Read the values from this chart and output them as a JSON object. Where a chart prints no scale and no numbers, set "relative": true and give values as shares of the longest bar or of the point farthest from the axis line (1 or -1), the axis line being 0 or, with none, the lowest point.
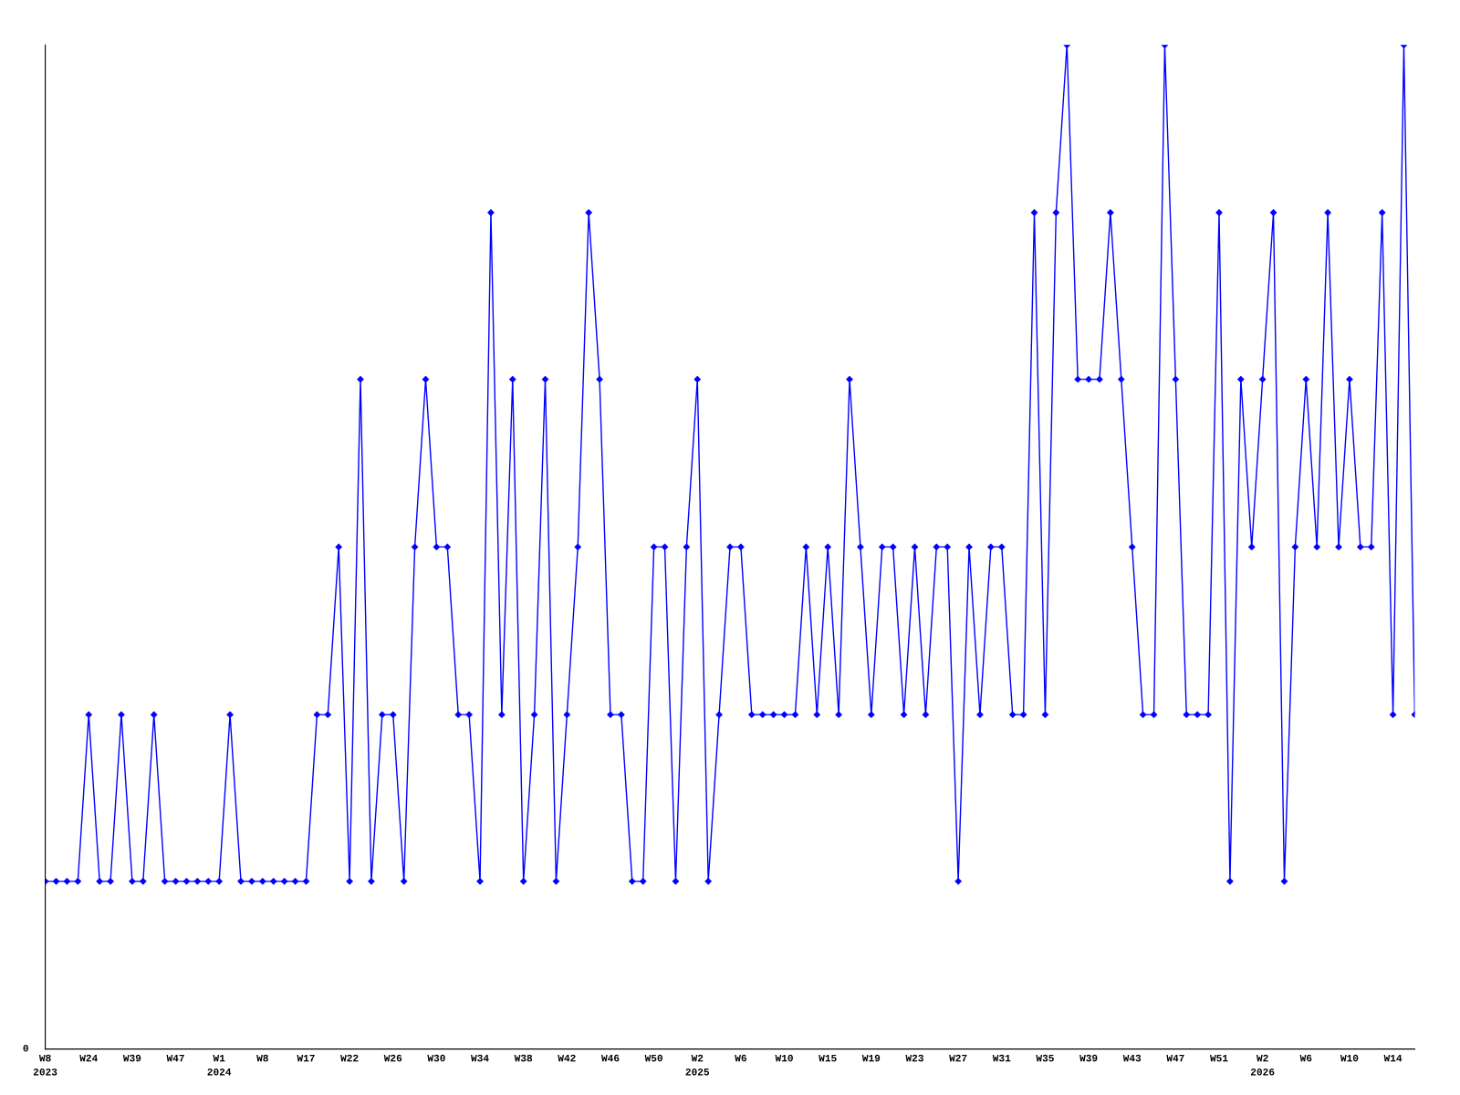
{
  "chart_data": {
    "type": "line",
    "relative": true,
    "marker": "diamond",
    "line_style": "solid",
    "grid": false,
    "legend": false,
    "categories": [
      "W8\n2023",
      null,
      null,
      null,
      "W24",
      null,
      null,
      null,
      "W39",
      null,
      null,
      null,
      "W47",
      null,
      null,
      null,
      "W1\n2024",
      null,
      null,
      null,
      "W8",
      null,
      null,
      null,
      "W17",
      null,
      null,
      null,
      "W22",
      null,
      null,
      null,
      "W26",
      null,
      null,
      null,
      "W30",
      null,
      null,
      null,
      "W34",
      null,
      null,
      null,
      "W38",
      null,
      null,
      null,
      "W42",
      null,
      null,
      null,
      "W46",
      null,
      null,
      null,
      "W50",
      null,
      null,
      null,
      "W2\n2025",
      null,
      null,
      null,
      "W6",
      null,
      null,
      null,
      "W10",
      null,
      null,
      null,
      "W15",
      null,
      null,
      null,
      "W19",
      null,
      null,
      null,
      "W23",
      null,
      null,
      null,
      "W27",
      null,
      null,
      null,
      "W31",
      null,
      null,
      null,
      "W35",
      null,
      null,
      null,
      "W39",
      null,
      null,
      null,
      "W43",
      null,
      null,
      null,
      "W47",
      null,
      null,
      null,
      "W51",
      null,
      null,
      null,
      "W2\n2026",
      null,
      null,
      null,
      "W6",
      null,
      null,
      null,
      "W10",
      null,
      null,
      null,
      "W14",
      null,
      null
    ],
    "series": [
      {
        "color": "#0000ff",
        "values": [
          0.167,
          0.167,
          0.167,
          0.167,
          0.333,
          0.167,
          0.167,
          0.333,
          0.167,
          0.167,
          0.333,
          0.167,
          0.167,
          0.167,
          0.167,
          0.167,
          0.167,
          0.333,
          0.167,
          0.167,
          0.167,
          0.167,
          0.167,
          0.167,
          0.167,
          0.333,
          0.333,
          0.5,
          0.167,
          0.667,
          0.167,
          0.333,
          0.333,
          0.167,
          0.5,
          0.667,
          0.5,
          0.5,
          0.333,
          0.333,
          0.167,
          0.833,
          0.333,
          0.667,
          0.167,
          0.333,
          0.667,
          0.167,
          0.333,
          0.5,
          0.833,
          0.667,
          0.333,
          0.333,
          0.167,
          0.167,
          0.5,
          0.5,
          0.167,
          0.5,
          0.667,
          0.167,
          0.333,
          0.5,
          0.5,
          0.333,
          0.333,
          0.333,
          0.333,
          0.333,
          0.5,
          0.333,
          0.5,
          0.333,
          0.667,
          0.5,
          0.333,
          0.5,
          0.5,
          0.333,
          0.5,
          0.333,
          0.5,
          0.5,
          0.167,
          0.5,
          0.333,
          0.5,
          0.5,
          0.333,
          0.333,
          0.833,
          0.333,
          0.833,
          1,
          0.667,
          0.667,
          0.667,
          0.833,
          0.667,
          0.5,
          0.333,
          0.333,
          1,
          0.667,
          0.333,
          0.333,
          0.333,
          0.833,
          0.167,
          0.667,
          0.5,
          0.667,
          0.833,
          0.167,
          0.5,
          0.667,
          0.5,
          0.833,
          0.5,
          0.667,
          0.5,
          0.5,
          0.833,
          0.333,
          1,
          0.333
        ]
      }
    ],
    "annotations": [
      "0"
    ]
  }
}
